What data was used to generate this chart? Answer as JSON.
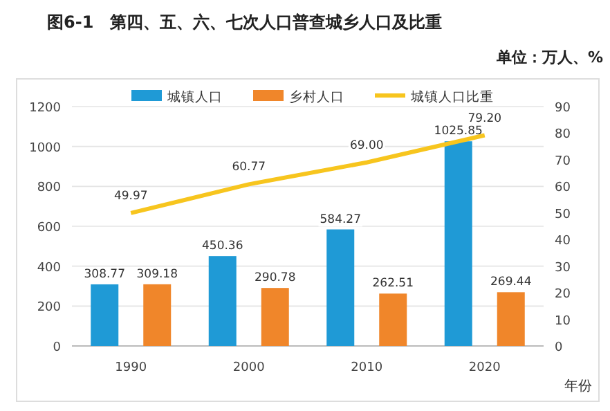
{
  "chart_data": {
    "type": "bar",
    "title": "图6-1　第四、五、六、七次人口普查城乡人口及比重",
    "subtitle": "单位：万人、%",
    "xlabel": "年份",
    "categories": [
      "1990",
      "2000",
      "2010",
      "2020"
    ],
    "series": [
      {
        "name": "城镇人口",
        "color": "#1f9ad6",
        "values": [
          308.77,
          450.36,
          584.27,
          1025.85
        ],
        "value_labels": [
          "308.77",
          "450.36",
          "584.27",
          "1025.85"
        ]
      },
      {
        "name": "乡村人口",
        "color": "#f0862a",
        "values": [
          309.18,
          290.78,
          262.51,
          269.44
        ],
        "value_labels": [
          "309.18",
          "290.78",
          "262.51",
          "269.44"
        ]
      },
      {
        "name": "城镇人口比重",
        "type": "line",
        "axis": "y2",
        "color": "#f7c51e",
        "values": [
          49.97,
          60.77,
          69.0,
          79.2
        ],
        "value_labels": [
          "49.97",
          "60.77",
          "69.00",
          "79.20"
        ]
      }
    ],
    "ylim": [
      0,
      1200
    ],
    "yticks": [
      0,
      200,
      400,
      600,
      800,
      1000,
      1200
    ],
    "y2lim": [
      0,
      90
    ],
    "y2ticks": [
      0,
      10,
      20,
      30,
      40,
      50,
      60,
      70,
      80,
      90
    ],
    "grid": "y",
    "legend": "top",
    "marker": "none"
  }
}
